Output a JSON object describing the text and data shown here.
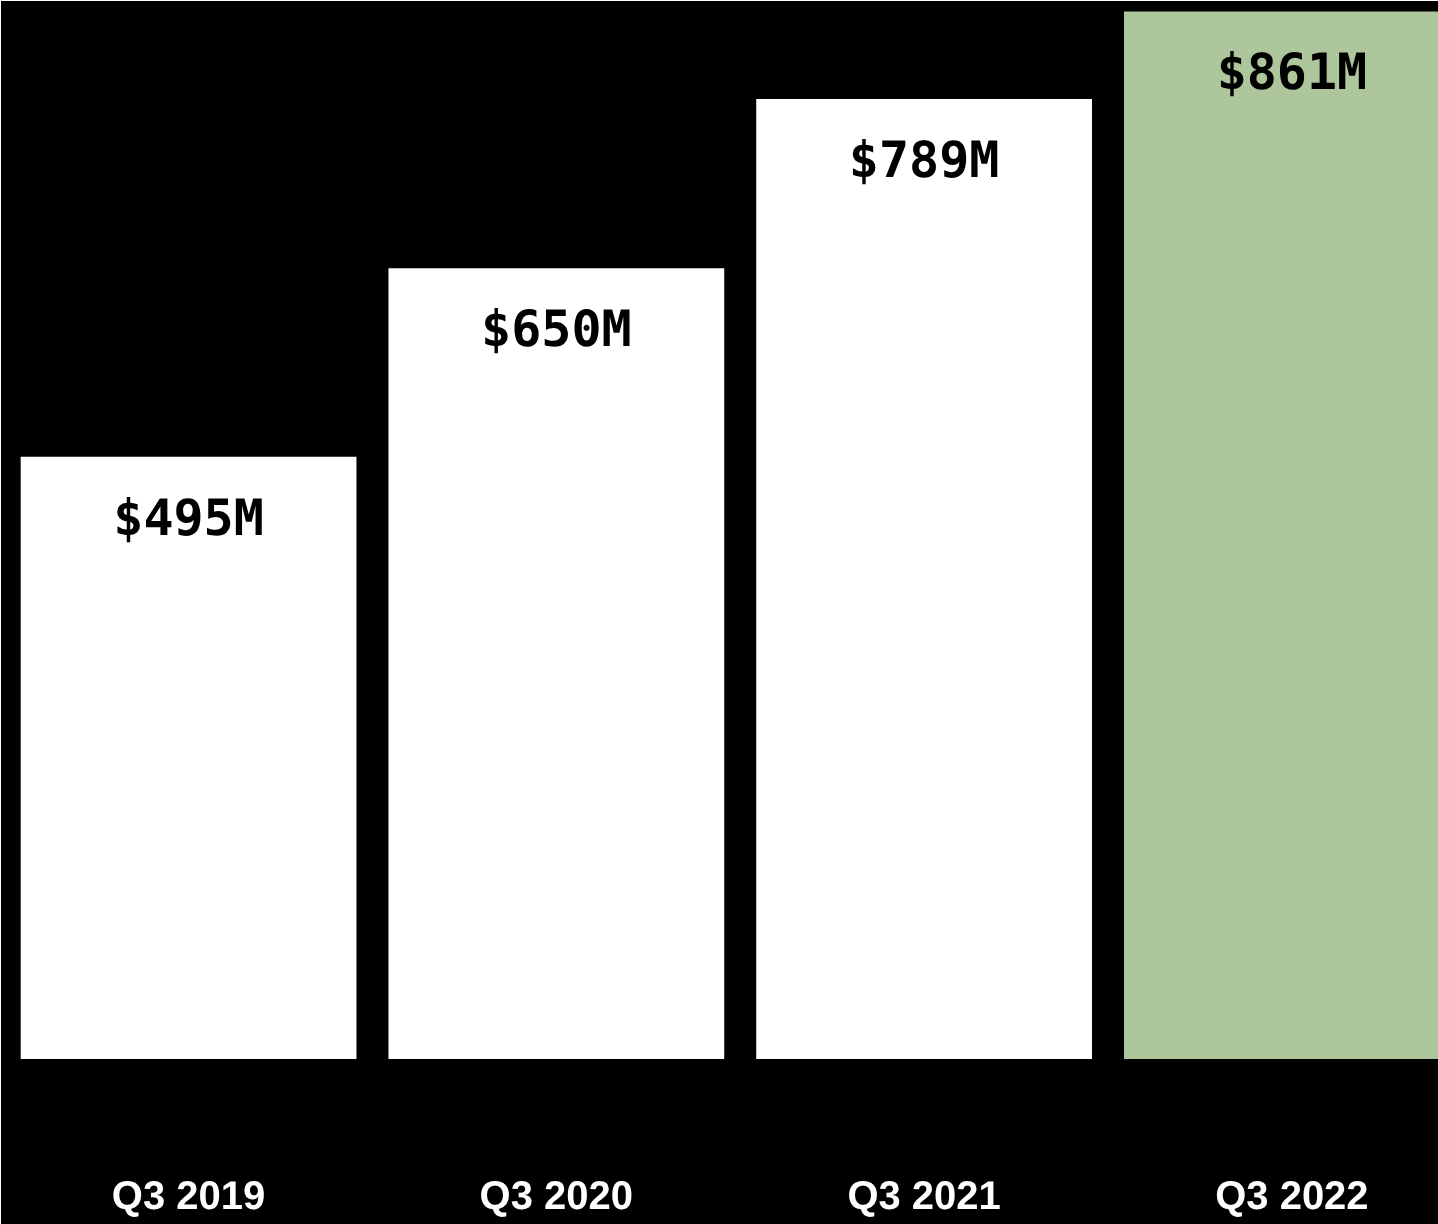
{
  "chart_data": {
    "type": "bar",
    "categories": [
      "Q3 2019",
      "Q3 2020",
      "Q3 2021",
      "Q3 2022"
    ],
    "values": [
      495,
      650,
      789,
      861
    ],
    "colors": [
      "#ffffff",
      "#ffffff",
      "#ffffff",
      "#aec69b"
    ],
    "value_labels": [
      "$495M",
      "$650M",
      "$789M",
      "$861M"
    ]
  }
}
